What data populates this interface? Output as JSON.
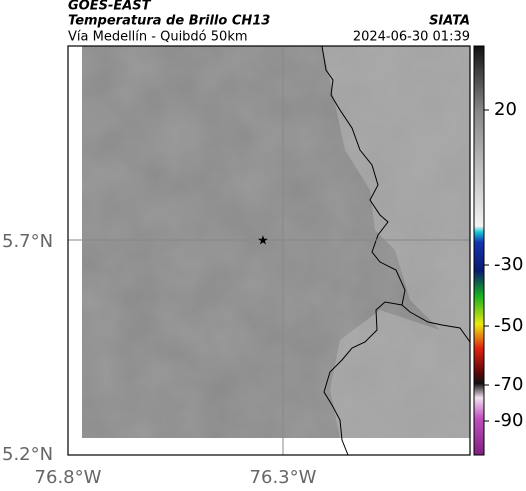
{
  "header": {
    "satellite": "GOES-EAST",
    "title": "Temperatura de Brillo CH13",
    "subtitle": "Vía Medellín - Quibdó 50km",
    "source": "SIATA",
    "timestamp": "2024-06-30 01:39"
  },
  "map": {
    "lat_labels": [
      "5.7°N",
      "5.2°N"
    ],
    "lon_labels": [
      "76.8°W",
      "76.3°W"
    ]
  },
  "colorbar": {
    "ticks": [
      20,
      -30,
      -50,
      -70,
      -90
    ]
  }
}
